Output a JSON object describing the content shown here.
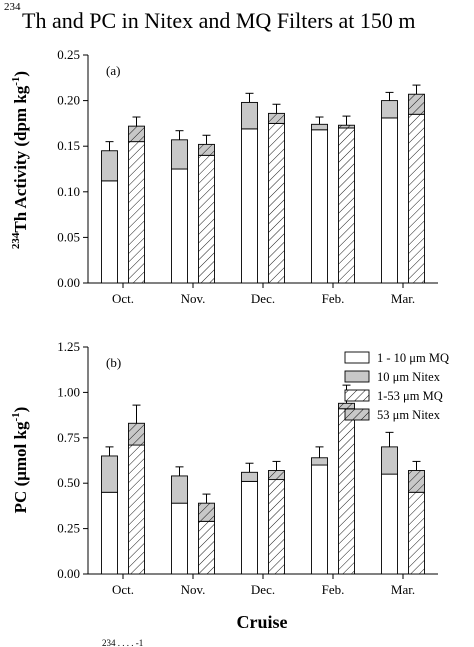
{
  "figure": {
    "title_sup": "234",
    "title_text": "Th and PC in Nitex and MQ Filters at 150 m",
    "xlabel": "Cruise",
    "caption_partial": "234 . . . . -1"
  },
  "legend": {
    "items": [
      {
        "label": "1 - 10 μm MQ",
        "style": "white"
      },
      {
        "label": "10 μm Nitex",
        "style": "gray"
      },
      {
        "label": "1-53 μm MQ",
        "style": "hatch-white"
      },
      {
        "label": "53 μm Nitex",
        "style": "hatch-gray"
      }
    ]
  },
  "chart_data": [
    {
      "type": "bar",
      "panel": "(a)",
      "ylabel_sup": "234",
      "ylabel": "Th Activity (dpm kg",
      "ylabel_unit_sup": "-1",
      "ylabel_tail": ")",
      "categories": [
        "Oct.",
        "Nov.",
        "Dec.",
        "Feb.",
        "Mar."
      ],
      "ylim": [
        0,
        0.25
      ],
      "yticks": [
        "0.00",
        "0.05",
        "0.10",
        "0.15",
        "0.20",
        "0.25"
      ],
      "stacks": [
        {
          "name": "MQ + Nitex (10 μm)",
          "bottom_series": "1 - 10 μm MQ",
          "top_series": "10 μm Nitex",
          "bottom": [
            0.112,
            0.125,
            0.169,
            0.168,
            0.181
          ],
          "total": [
            0.145,
            0.157,
            0.198,
            0.174,
            0.2
          ],
          "error": [
            0.01,
            0.01,
            0.01,
            0.008,
            0.009
          ]
        },
        {
          "name": "MQ + Nitex (53 μm)",
          "bottom_series": "1-53 μm MQ",
          "top_series": "53 μm Nitex",
          "bottom": [
            0.155,
            0.14,
            0.175,
            0.17,
            0.185
          ],
          "total": [
            0.172,
            0.152,
            0.186,
            0.173,
            0.207
          ],
          "error": [
            0.01,
            0.01,
            0.01,
            0.01,
            0.01
          ]
        }
      ]
    },
    {
      "type": "bar",
      "panel": "(b)",
      "ylabel": "PC (μmol kg",
      "ylabel_unit_sup": "-1",
      "ylabel_tail": ")",
      "categories": [
        "Oct.",
        "Nov.",
        "Dec.",
        "Feb.",
        "Mar."
      ],
      "ylim": [
        0,
        1.25
      ],
      "yticks": [
        "0.00",
        "0.25",
        "0.50",
        "0.75",
        "1.00",
        "1.25"
      ],
      "stacks": [
        {
          "name": "MQ + Nitex (10 μm)",
          "bottom_series": "1 - 10 μm MQ",
          "top_series": "10 μm Nitex",
          "bottom": [
            0.45,
            0.39,
            0.51,
            0.6,
            0.55
          ],
          "total": [
            0.65,
            0.54,
            0.56,
            0.64,
            0.7
          ],
          "error": [
            0.05,
            0.05,
            0.05,
            0.06,
            0.08
          ]
        },
        {
          "name": "MQ + Nitex (53 μm)",
          "bottom_series": "1-53 μm MQ",
          "top_series": "53 μm Nitex",
          "bottom": [
            0.71,
            0.29,
            0.52,
            0.91,
            0.45
          ],
          "total": [
            0.83,
            0.39,
            0.57,
            0.94,
            0.57
          ],
          "error": [
            0.1,
            0.05,
            0.05,
            0.1,
            0.05
          ]
        }
      ]
    }
  ]
}
